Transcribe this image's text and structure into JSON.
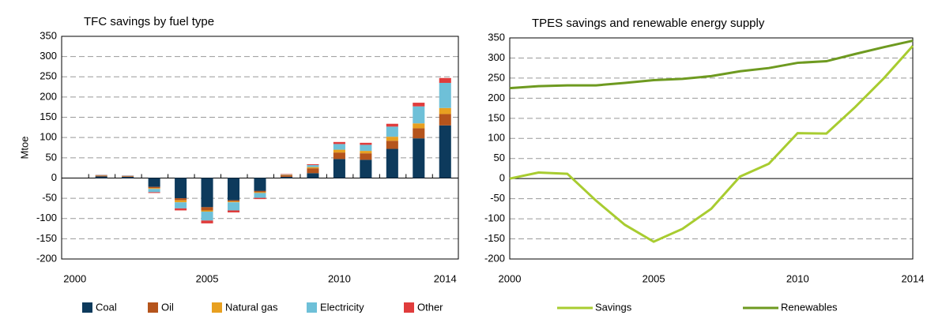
{
  "chart_data": [
    {
      "type": "bar",
      "title": "TFC savings by fuel type",
      "ylabel": "Mtoe",
      "stacked": true,
      "grid": true,
      "legend": "bottom",
      "x": [
        2001,
        2002,
        2003,
        2004,
        2005,
        2006,
        2007,
        2008,
        2009,
        2010,
        2011,
        2012,
        2013,
        2014
      ],
      "xlim": [
        1999.5,
        2014.5
      ],
      "xticks": [
        2000,
        2005,
        2010,
        2014
      ],
      "ylim": [
        -200,
        350
      ],
      "yticks": [
        -200,
        -150,
        -100,
        -50,
        0,
        50,
        100,
        150,
        200,
        250,
        300,
        350
      ],
      "series": [
        {
          "name": "Coal",
          "color": "#0d3a5c",
          "values": [
            4,
            3,
            -22,
            -50,
            -72,
            -55,
            -32,
            3,
            12,
            47,
            45,
            72,
            98,
            130
          ]
        },
        {
          "name": "Oil",
          "color": "#b5541c",
          "values": [
            2,
            1.5,
            -3,
            -5,
            -8,
            -3,
            -3,
            4,
            12,
            16,
            16,
            20,
            25,
            28
          ]
        },
        {
          "name": "Natural gas",
          "color": "#e8a020",
          "values": [
            0.5,
            0.5,
            -2,
            -5,
            -3,
            -2,
            -2,
            1,
            3,
            7,
            6,
            10,
            12,
            15
          ]
        },
        {
          "name": "Electricity",
          "color": "#6ec0d8",
          "values": [
            1,
            1,
            -8,
            -15,
            -22,
            -20,
            -12,
            1,
            5,
            14,
            15,
            25,
            42,
            62
          ]
        },
        {
          "name": "Other",
          "color": "#e03c3c",
          "values": [
            0.5,
            0.5,
            -2,
            -5,
            -7,
            -5,
            -3,
            1,
            2,
            5,
            5,
            7,
            9,
            12
          ]
        }
      ]
    },
    {
      "type": "line",
      "title": "TPES savings and renewable energy supply",
      "grid": true,
      "legend": "bottom",
      "x": [
        2000,
        2001,
        2002,
        2003,
        2004,
        2005,
        2006,
        2007,
        2008,
        2009,
        2010,
        2011,
        2012,
        2013,
        2014
      ],
      "xlim": [
        2000,
        2014
      ],
      "xticks": [
        2000,
        2005,
        2010,
        2014
      ],
      "ylim": [
        -200,
        350
      ],
      "yticks": [
        -200,
        -150,
        -100,
        -50,
        0,
        50,
        100,
        150,
        200,
        250,
        300,
        350
      ],
      "series": [
        {
          "name": "Savings",
          "color": "#a8cc30",
          "values": [
            0,
            15,
            12,
            -55,
            -115,
            -157,
            -125,
            -75,
            5,
            37,
            113,
            112,
            178,
            250,
            330
          ]
        },
        {
          "name": "Renewables",
          "color": "#6e9a20",
          "values": [
            225,
            230,
            232,
            232,
            238,
            245,
            248,
            255,
            267,
            275,
            288,
            292,
            310,
            327,
            343
          ]
        }
      ]
    }
  ]
}
